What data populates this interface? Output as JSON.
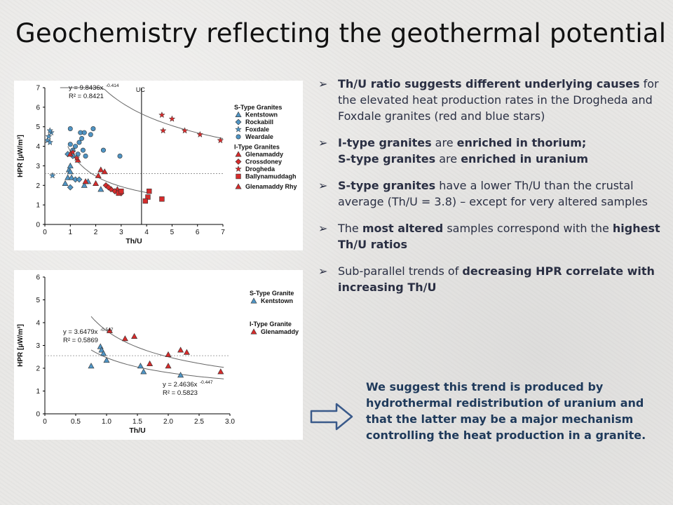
{
  "title": "Geochemistry reflecting the geothermal potential",
  "bullets": [
    {
      "parts": [
        {
          "text": "Th/U ratio suggests different underlying causes",
          "bold": true
        },
        {
          "text": " for the elevated heat production rates in the Drogheda and Foxdale granites (red and blue stars)",
          "bold": false
        }
      ]
    },
    {
      "parts": [
        {
          "text": "I-type granites",
          "bold": true
        },
        {
          "text": " are ",
          "bold": false
        },
        {
          "text": "enriched in thorium;",
          "bold": true
        },
        {
          "text": "\nS-type granites",
          "bold": true
        },
        {
          "text": " are ",
          "bold": false
        },
        {
          "text": "enriched in uranium",
          "bold": true
        }
      ]
    },
    {
      "parts": [
        {
          "text": "S-type granites",
          "bold": true
        },
        {
          "text": " have a lower Th/U than the crustal average (Th/U = 3.8) – except for very altered samples",
          "bold": false
        }
      ]
    },
    {
      "parts": [
        {
          "text": "The ",
          "bold": false
        },
        {
          "text": "most altered",
          "bold": true
        },
        {
          "text": " samples correspond with the ",
          "bold": false
        },
        {
          "text": "highest Th/U ratios",
          "bold": true
        }
      ]
    },
    {
      "parts": [
        {
          "text": "Sub-parallel trends of ",
          "bold": false
        },
        {
          "text": "decreasing HPR correlate with increasing Th/U",
          "bold": true
        }
      ]
    }
  ],
  "conclusion": "We suggest this trend is produced by hydrothermal redistribution of uranium and that the latter may be a major mechanism controlling the heat production in a granite.",
  "bullet_icon": "arrow-bullet-icon",
  "arrow_icon": "right-arrow-outline-icon",
  "colors": {
    "red": "#d62b2b",
    "blue": "#4f94c4",
    "text": "#2a2f43",
    "conclusion": "#1f3a5b",
    "trend": "#666666"
  },
  "chart_data": [
    {
      "type": "scatter",
      "xlabel": "Th/U",
      "ylabel": "HPR [µW/m³]",
      "xlim": [
        0,
        7
      ],
      "ylim": [
        0,
        7
      ],
      "xticks": [
        0,
        1,
        2,
        3,
        4,
        5,
        6,
        7
      ],
      "yticks": [
        0,
        1,
        2,
        3,
        4,
        5,
        6,
        7
      ],
      "reference_line": {
        "x": 3.8,
        "label": "UC"
      },
      "horizontal_line": 2.6,
      "equation": {
        "formula": "y = 9.8436x",
        "exponent": "-0.414",
        "r2": "R² = 0.8421"
      },
      "trend_curves": [
        {
          "a": 9.8436,
          "b": -0.414,
          "from": 0.6,
          "to": 7
        },
        {
          "a": 3.75,
          "b": -0.6,
          "from": 0.9,
          "to": 4.2
        }
      ],
      "legend": {
        "groups": [
          {
            "title": "S-Type Granites",
            "entries": [
              {
                "name": "Kentstown",
                "marker": "triangle",
                "color": "#4f94c4"
              },
              {
                "name": "Rockabill",
                "marker": "diamond",
                "color": "#4f94c4"
              },
              {
                "name": "Foxdale",
                "marker": "star",
                "color": "#4f94c4"
              },
              {
                "name": "Weardale",
                "marker": "circle",
                "color": "#4f94c4"
              }
            ]
          },
          {
            "title": "I-Type Granites",
            "entries": [
              {
                "name": "Glenamaddy",
                "marker": "triangle",
                "color": "#d62b2b"
              },
              {
                "name": "Crossdoney",
                "marker": "diamond",
                "color": "#d62b2b"
              },
              {
                "name": "Drogheda",
                "marker": "star",
                "color": "#d62b2b"
              },
              {
                "name": "Ballynamuddagh",
                "marker": "square",
                "color": "#d62b2b"
              }
            ]
          },
          {
            "title": "",
            "entries": [
              {
                "name": "Glenamaddy Rhy",
                "marker": "triangle",
                "color": "#d62b2b"
              }
            ]
          }
        ]
      },
      "series": [
        {
          "name": "Kentstown",
          "marker": "triangle",
          "color": "#4f94c4",
          "points": [
            [
              0.8,
              2.1
            ],
            [
              0.9,
              2.4
            ],
            [
              0.95,
              2.8
            ],
            [
              1.0,
              2.7
            ],
            [
              1.0,
              3.0
            ],
            [
              1.55,
              2.0
            ],
            [
              1.7,
              2.2
            ],
            [
              2.2,
              1.8
            ],
            [
              1.05,
              2.4
            ]
          ]
        },
        {
          "name": "Rockabill",
          "marker": "diamond",
          "color": "#4f94c4",
          "points": [
            [
              0.9,
              3.6
            ],
            [
              1.1,
              3.5
            ],
            [
              1.2,
              2.3
            ],
            [
              1.0,
              1.9
            ],
            [
              1.35,
              2.3
            ]
          ]
        },
        {
          "name": "Foxdale",
          "marker": "star",
          "color": "#4f94c4",
          "points": [
            [
              0.1,
              4.3
            ],
            [
              0.15,
              4.5
            ],
            [
              0.2,
              4.2
            ],
            [
              0.25,
              4.7
            ],
            [
              0.2,
              4.8
            ],
            [
              0.3,
              2.5
            ]
          ]
        },
        {
          "name": "Weardale",
          "marker": "circle",
          "color": "#4f94c4",
          "points": [
            [
              1.0,
              4.9
            ],
            [
              1.0,
              4.1
            ],
            [
              1.2,
              4.0
            ],
            [
              1.4,
              4.7
            ],
            [
              1.55,
              4.7
            ],
            [
              1.8,
              4.6
            ],
            [
              1.9,
              4.9
            ],
            [
              1.35,
              4.2
            ],
            [
              1.45,
              4.4
            ],
            [
              1.5,
              3.8
            ],
            [
              1.6,
              3.5
            ],
            [
              1.3,
              3.6
            ],
            [
              1.1,
              3.8
            ],
            [
              2.3,
              3.8
            ],
            [
              2.95,
              3.5
            ]
          ]
        },
        {
          "name": "Glenamaddy",
          "marker": "triangle",
          "color": "#d62b2b",
          "points": [
            [
              1.0,
              3.6
            ],
            [
              1.3,
              3.3
            ],
            [
              1.6,
              2.2
            ],
            [
              2.0,
              2.1
            ],
            [
              2.2,
              2.8
            ],
            [
              2.35,
              2.7
            ],
            [
              2.85,
              1.8
            ],
            [
              2.1,
              2.5
            ]
          ]
        },
        {
          "name": "Crossdoney",
          "marker": "diamond",
          "color": "#d62b2b",
          "points": [
            [
              2.4,
              2.0
            ],
            [
              2.6,
              1.8
            ],
            [
              2.75,
              1.7
            ],
            [
              3.0,
              1.6
            ],
            [
              2.5,
              1.9
            ]
          ]
        },
        {
          "name": "Drogheda",
          "marker": "star",
          "color": "#d62b2b",
          "points": [
            [
              1.1,
              3.7
            ],
            [
              1.25,
              3.4
            ],
            [
              4.6,
              5.6
            ],
            [
              4.65,
              4.8
            ],
            [
              5.0,
              5.4
            ],
            [
              5.5,
              4.8
            ],
            [
              6.1,
              4.6
            ],
            [
              6.9,
              4.3
            ]
          ]
        },
        {
          "name": "Ballynamuddagh",
          "marker": "square",
          "color": "#d62b2b",
          "points": [
            [
              2.9,
              1.6
            ],
            [
              3.0,
              1.7
            ],
            [
              4.1,
              1.7
            ],
            [
              4.05,
              1.4
            ],
            [
              3.95,
              1.2
            ],
            [
              4.6,
              1.3
            ]
          ]
        }
      ]
    },
    {
      "type": "scatter",
      "xlabel": "Th/U",
      "ylabel": "HPR [µW/m³]",
      "xlim": [
        0,
        3.0
      ],
      "ylim": [
        0,
        6
      ],
      "xticks": [
        "0",
        "0.5",
        "1.0",
        "1.5",
        "2.0",
        "2.5",
        "3.0"
      ],
      "xtick_values": [
        0,
        0.5,
        1.0,
        1.5,
        2.0,
        2.5,
        3.0
      ],
      "yticks": [
        0,
        1,
        2,
        3,
        4,
        5,
        6
      ],
      "horizontal_line": 2.55,
      "equations": [
        {
          "formula": "y = 3.6479x",
          "exponent": "-0.547",
          "r2": "R² = 0.5869"
        },
        {
          "formula": "y = 2.4636x",
          "exponent": "-0.447",
          "r2": "R² = 0.5823"
        }
      ],
      "trend_curves": [
        {
          "a": 3.6479,
          "b": -0.547,
          "from": 0.75,
          "to": 2.9
        },
        {
          "a": 2.4636,
          "b": -0.447,
          "from": 0.75,
          "to": 2.9
        }
      ],
      "legend": {
        "groups": [
          {
            "title": "S-Type Granite",
            "entries": [
              {
                "name": "Kentstown",
                "marker": "triangle",
                "color": "#4f94c4"
              }
            ]
          },
          {
            "title": "I-Type Granite",
            "entries": [
              {
                "name": "Glenamaddy",
                "marker": "triangle",
                "color": "#d62b2b"
              }
            ]
          }
        ]
      },
      "series": [
        {
          "name": "Kentstown",
          "marker": "triangle",
          "color": "#4f94c4",
          "points": [
            [
              0.75,
              2.1
            ],
            [
              0.9,
              2.95
            ],
            [
              0.92,
              2.8
            ],
            [
              0.95,
              2.65
            ],
            [
              1.0,
              2.35
            ],
            [
              1.55,
              2.1
            ],
            [
              1.6,
              1.85
            ],
            [
              2.2,
              1.7
            ]
          ]
        },
        {
          "name": "Glenamaddy",
          "marker": "triangle",
          "color": "#d62b2b",
          "points": [
            [
              1.05,
              3.65
            ],
            [
              1.3,
              3.3
            ],
            [
              1.45,
              3.4
            ],
            [
              1.7,
              2.2
            ],
            [
              2.0,
              2.1
            ],
            [
              2.0,
              2.6
            ],
            [
              2.2,
              2.8
            ],
            [
              2.3,
              2.7
            ],
            [
              2.85,
              1.85
            ]
          ]
        }
      ]
    }
  ]
}
